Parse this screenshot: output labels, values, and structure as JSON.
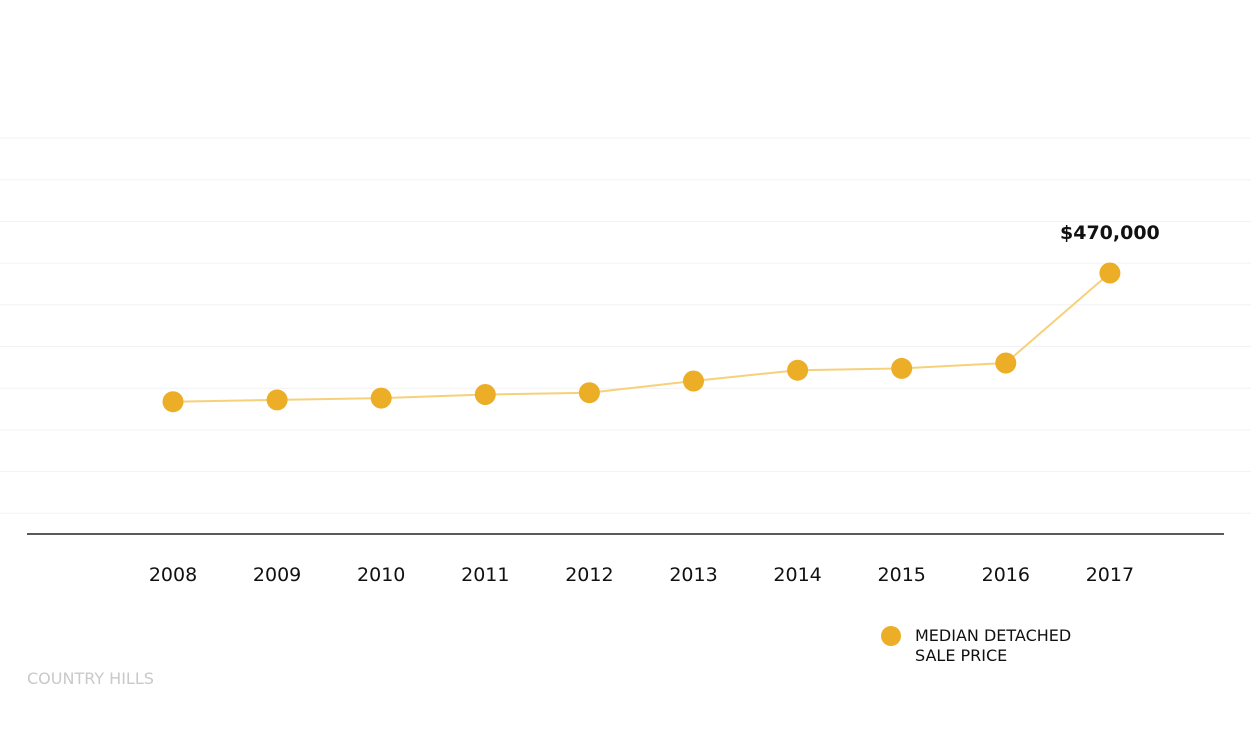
{
  "chart_data": {
    "type": "line",
    "categories": [
      "2008",
      "2009",
      "2010",
      "2011",
      "2012",
      "2013",
      "2014",
      "2015",
      "2016",
      "2017"
    ],
    "series": [
      {
        "name": "MEDIAN DETACHED SALE PRICE",
        "values": [
          327000,
          329000,
          331000,
          335000,
          337000,
          350000,
          362000,
          364000,
          370000,
          470000
        ],
        "color": "#ecad27",
        "line_color": "#f7d07a"
      }
    ],
    "annotations": [
      {
        "category": "2017",
        "text": "$470,000"
      }
    ],
    "ylim": [
      180000,
      620000
    ],
    "grid": true,
    "legend_position": "bottom-right",
    "title": "",
    "xlabel": "",
    "ylabel": ""
  },
  "legend": {
    "label": "MEDIAN DETACHED\nSALE PRICE"
  },
  "footer": {
    "label": "COUNTRY HILLS"
  },
  "colors": {
    "accent": "#ecad27",
    "line": "#f7d07a",
    "gridline": "#f2f2f2",
    "axis": "#222222",
    "muted_text": "#c9c9c9"
  }
}
